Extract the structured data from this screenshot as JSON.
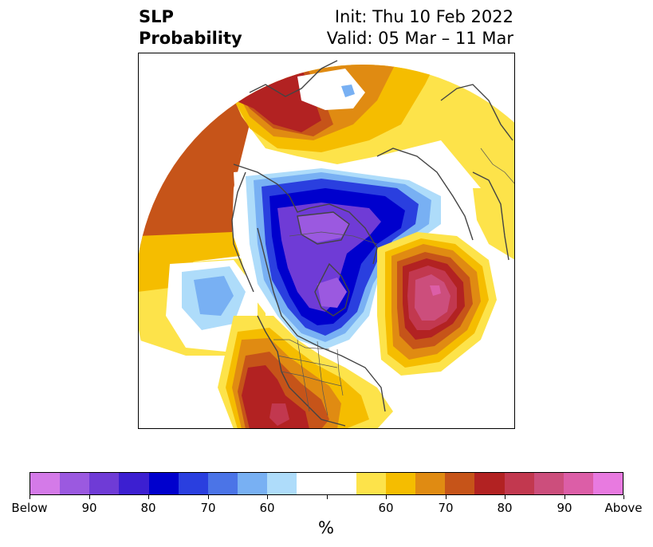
{
  "title": {
    "left_line1": "SLP",
    "left_line2": "Probability",
    "right_line1": "Init: Thu 10 Feb 2022",
    "right_line2": "Valid: 05 Mar – 11 Mar"
  },
  "colorbar": {
    "colors": [
      "#d47ae8",
      "#9b59e0",
      "#6f3bd6",
      "#3c1fd1",
      "#0000cd",
      "#2a3fdf",
      "#4b74e7",
      "#78b0f3",
      "#aedcfa",
      "#ffffff",
      "#ffffff",
      "#fde34a",
      "#f5bd00",
      "#e08b12",
      "#c65419",
      "#b22222",
      "#c2384f",
      "#cc4e7c",
      "#dc5ea7",
      "#e87ae0"
    ],
    "tick_labels": [
      "Below",
      "90",
      "80",
      "70",
      "60",
      "",
      "60",
      "70",
      "80",
      "90",
      "Above"
    ],
    "unit": "%"
  },
  "map_colors": {
    "below_light": "#aedcfa",
    "below_mid": "#78b0f3",
    "below_blue": "#2a3fdf",
    "below_deep": "#0000cd",
    "below_purple": "#6f3bd6",
    "below_violet": "#9b59e0",
    "above_yellow": "#fde34a",
    "above_gold": "#f5bd00",
    "above_orange": "#e08b12",
    "above_burnt": "#c65419",
    "above_red": "#b22222",
    "above_rose": "#c2384f",
    "above_pink": "#cc4e7c",
    "above_magenta": "#dc5ea7",
    "coast": "#444444"
  }
}
